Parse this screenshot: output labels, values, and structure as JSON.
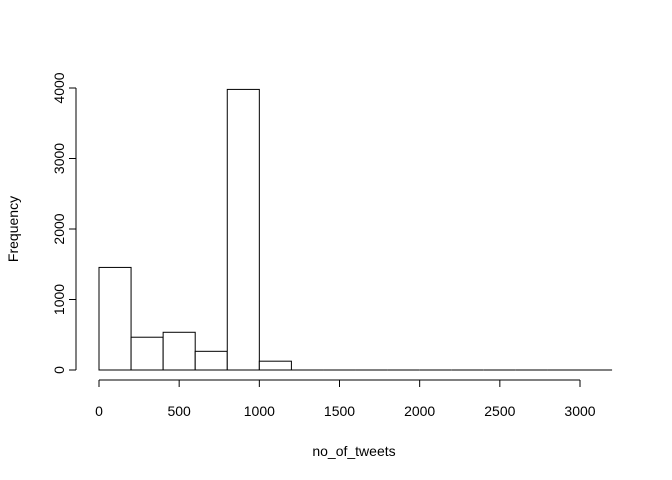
{
  "chart_data": {
    "type": "bar",
    "title": "",
    "xlabel": "no_of_tweets",
    "ylabel": "Frequency",
    "bin_width": 200,
    "bins": [
      {
        "start": 0,
        "end": 200,
        "count": 1455
      },
      {
        "start": 200,
        "end": 400,
        "count": 465
      },
      {
        "start": 400,
        "end": 600,
        "count": 535
      },
      {
        "start": 600,
        "end": 800,
        "count": 265
      },
      {
        "start": 800,
        "end": 1000,
        "count": 3980
      },
      {
        "start": 1000,
        "end": 1200,
        "count": 125
      },
      {
        "start": 1200,
        "end": 1400,
        "count": 0
      },
      {
        "start": 1400,
        "end": 1600,
        "count": 0
      },
      {
        "start": 1600,
        "end": 1800,
        "count": 0
      },
      {
        "start": 1800,
        "end": 2000,
        "count": 0
      },
      {
        "start": 2000,
        "end": 2200,
        "count": 0
      },
      {
        "start": 2200,
        "end": 2400,
        "count": 0
      },
      {
        "start": 2400,
        "end": 2600,
        "count": 0
      },
      {
        "start": 2600,
        "end": 2800,
        "count": 0
      },
      {
        "start": 2800,
        "end": 3000,
        "count": 0
      },
      {
        "start": 3000,
        "end": 3200,
        "count": 0
      }
    ],
    "x_ticks": [
      "0",
      "500",
      "1000",
      "1500",
      "2000",
      "2500",
      "3000"
    ],
    "y_ticks": [
      "0",
      "1000",
      "2000",
      "3000",
      "4000"
    ],
    "xlim": [
      0,
      3200
    ],
    "ylim": [
      0,
      4000
    ],
    "grid": false,
    "bar_fill": "#ffffff",
    "bar_stroke": "#000000"
  }
}
